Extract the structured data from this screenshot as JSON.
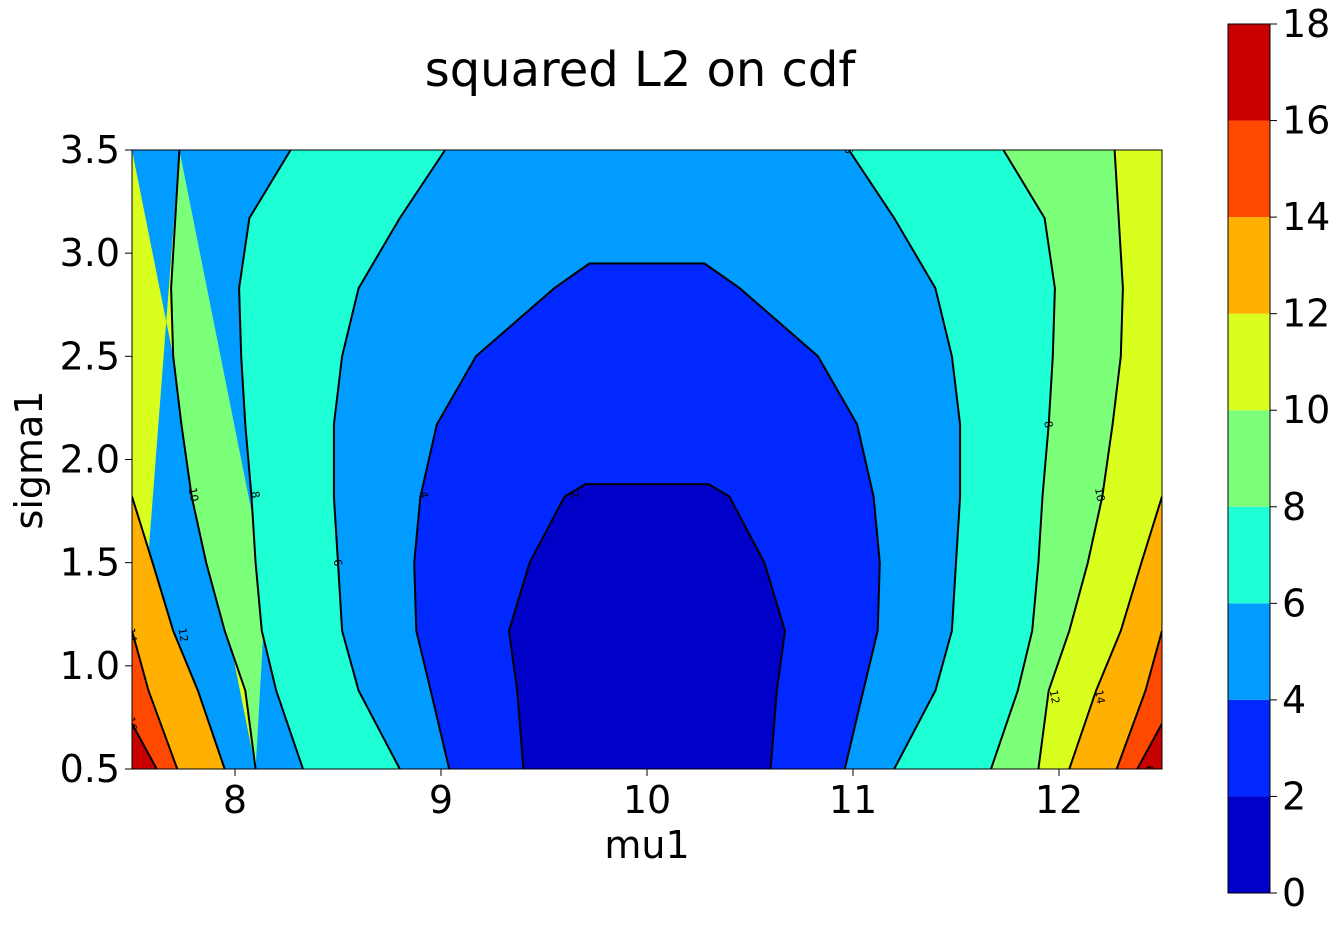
{
  "chart_data": {
    "type": "contour",
    "title": "squared L2 on cdf",
    "xlabel": "mu1",
    "ylabel": "sigma1",
    "xlim": [
      7.5,
      12.5
    ],
    "ylim": [
      0.5,
      3.5
    ],
    "x_ticks": [
      "8",
      "9",
      "10",
      "11",
      "12"
    ],
    "y_ticks": [
      "0.5",
      "1.0",
      "1.5",
      "2.0",
      "2.5",
      "3.0",
      "3.5"
    ],
    "colorbar": {
      "levels": [
        0,
        2,
        4,
        6,
        8,
        10,
        12,
        14,
        16,
        18
      ],
      "tick_labels": [
        "0",
        "2",
        "4",
        "6",
        "8",
        "10",
        "12",
        "14",
        "16",
        "18"
      ],
      "colors": [
        "#0000c8",
        "#0028ff",
        "#009cff",
        "#1effd6",
        "#7cff79",
        "#d8ff1e",
        "#ffb000",
        "#ff4800",
        "#c80000"
      ]
    },
    "contour_lines": [
      {
        "level": 2,
        "points": [
          [
            9.4,
            0.5
          ],
          [
            9.37,
            0.88
          ],
          [
            9.33,
            1.17
          ],
          [
            9.43,
            1.5
          ],
          [
            9.6,
            1.82
          ],
          [
            9.7,
            1.88
          ],
          [
            10.3,
            1.88
          ],
          [
            10.4,
            1.82
          ],
          [
            10.57,
            1.5
          ],
          [
            10.67,
            1.17
          ],
          [
            10.63,
            0.88
          ],
          [
            10.6,
            0.5
          ]
        ]
      },
      {
        "level": 4,
        "points": [
          [
            9.04,
            0.5
          ],
          [
            8.95,
            0.88
          ],
          [
            8.88,
            1.17
          ],
          [
            8.87,
            1.5
          ],
          [
            8.9,
            1.82
          ],
          [
            8.98,
            2.17
          ],
          [
            9.17,
            2.5
          ],
          [
            9.55,
            2.83
          ],
          [
            9.72,
            2.95
          ],
          [
            10.28,
            2.95
          ],
          [
            10.45,
            2.83
          ],
          [
            10.83,
            2.5
          ],
          [
            11.02,
            2.17
          ],
          [
            11.1,
            1.82
          ],
          [
            11.13,
            1.5
          ],
          [
            11.12,
            1.17
          ],
          [
            11.05,
            0.88
          ],
          [
            10.96,
            0.5
          ]
        ]
      },
      {
        "level": 6,
        "points": [
          [
            8.8,
            0.5
          ],
          [
            8.6,
            0.88
          ],
          [
            8.52,
            1.17
          ],
          [
            8.5,
            1.5
          ],
          [
            8.48,
            1.82
          ],
          [
            8.48,
            2.17
          ],
          [
            8.52,
            2.5
          ],
          [
            8.6,
            2.83
          ],
          [
            8.8,
            3.17
          ],
          [
            9.02,
            3.5
          ]
        ]
      },
      {
        "level": 6,
        "points": [
          [
            10.98,
            3.5
          ],
          [
            11.2,
            3.17
          ],
          [
            11.4,
            2.83
          ],
          [
            11.48,
            2.5
          ],
          [
            11.52,
            2.17
          ],
          [
            11.52,
            1.82
          ],
          [
            11.5,
            1.5
          ],
          [
            11.48,
            1.17
          ],
          [
            11.4,
            0.88
          ],
          [
            11.2,
            0.5
          ]
        ]
      },
      {
        "level": 8,
        "points": [
          [
            8.33,
            0.5
          ],
          [
            8.2,
            0.88
          ],
          [
            8.13,
            1.17
          ],
          [
            8.1,
            1.5
          ],
          [
            8.08,
            1.82
          ],
          [
            8.05,
            2.17
          ],
          [
            8.03,
            2.5
          ],
          [
            8.02,
            2.83
          ],
          [
            8.07,
            3.17
          ],
          [
            8.27,
            3.5
          ]
        ]
      },
      {
        "level": 8,
        "points": [
          [
            11.73,
            3.5
          ],
          [
            11.93,
            3.17
          ],
          [
            11.98,
            2.83
          ],
          [
            11.97,
            2.5
          ],
          [
            11.95,
            2.17
          ],
          [
            11.92,
            1.82
          ],
          [
            11.9,
            1.5
          ],
          [
            11.87,
            1.17
          ],
          [
            11.8,
            0.88
          ],
          [
            11.67,
            0.5
          ]
        ]
      },
      {
        "level": 10,
        "points": [
          [
            7.5,
            1.82
          ],
          [
            7.6,
            1.5
          ],
          [
            7.7,
            1.17
          ],
          [
            7.82,
            0.88
          ],
          [
            7.95,
            0.5
          ]
        ]
      },
      {
        "level": 10,
        "points": [
          [
            7.73,
            3.5
          ],
          [
            7.71,
            3.17
          ],
          [
            7.69,
            2.83
          ],
          [
            7.7,
            2.5
          ],
          [
            7.74,
            2.17
          ],
          [
            7.79,
            1.82
          ],
          [
            7.86,
            1.5
          ],
          [
            7.95,
            1.17
          ],
          [
            8.05,
            0.88
          ],
          [
            8.1,
            0.5
          ]
        ]
      },
      {
        "level": 10,
        "points": [
          [
            12.27,
            3.5
          ],
          [
            12.29,
            3.17
          ],
          [
            12.31,
            2.83
          ],
          [
            12.3,
            2.5
          ],
          [
            12.26,
            2.17
          ],
          [
            12.21,
            1.82
          ],
          [
            12.14,
            1.5
          ],
          [
            12.05,
            1.17
          ],
          [
            11.95,
            0.88
          ],
          [
            11.9,
            0.5
          ]
        ]
      },
      {
        "level": 10,
        "points": [
          [
            12.5,
            1.82
          ],
          [
            12.4,
            1.5
          ],
          [
            12.3,
            1.17
          ],
          [
            12.18,
            0.88
          ],
          [
            12.05,
            0.5
          ]
        ]
      },
      {
        "level": 12,
        "points": [
          [
            7.5,
            1.17
          ],
          [
            7.58,
            0.88
          ],
          [
            7.72,
            0.5
          ]
        ]
      },
      {
        "level": 12,
        "points": [
          [
            12.5,
            1.17
          ],
          [
            12.42,
            0.88
          ],
          [
            12.28,
            0.5
          ]
        ]
      },
      {
        "level": 14,
        "points": [
          [
            7.5,
            0.72
          ],
          [
            7.62,
            0.5
          ]
        ]
      },
      {
        "level": 14,
        "points": [
          [
            12.5,
            0.72
          ],
          [
            12.38,
            0.5
          ]
        ]
      }
    ],
    "contour_labels": [
      {
        "text": "2",
        "x": 9.65,
        "y": 1.83
      },
      {
        "text": "4",
        "x": 8.92,
        "y": 1.83
      },
      {
        "text": "6",
        "x": 8.5,
        "y": 1.5
      },
      {
        "text": "6",
        "x": 10.98,
        "y": 3.5
      },
      {
        "text": "8",
        "x": 8.1,
        "y": 1.83
      },
      {
        "text": "8",
        "x": 11.95,
        "y": 2.17
      },
      {
        "text": "10",
        "x": 7.8,
        "y": 1.83
      },
      {
        "text": "10",
        "x": 12.2,
        "y": 1.83
      },
      {
        "text": "12",
        "x": 7.75,
        "y": 1.15
      },
      {
        "text": "12",
        "x": 11.98,
        "y": 0.85
      },
      {
        "text": "14",
        "x": 7.5,
        "y": 1.15
      },
      {
        "text": "14",
        "x": 12.2,
        "y": 0.85
      },
      {
        "text": "16",
        "x": 7.5,
        "y": 0.72
      },
      {
        "text": "6",
        "x": 12.44,
        "y": 0.5
      }
    ]
  }
}
